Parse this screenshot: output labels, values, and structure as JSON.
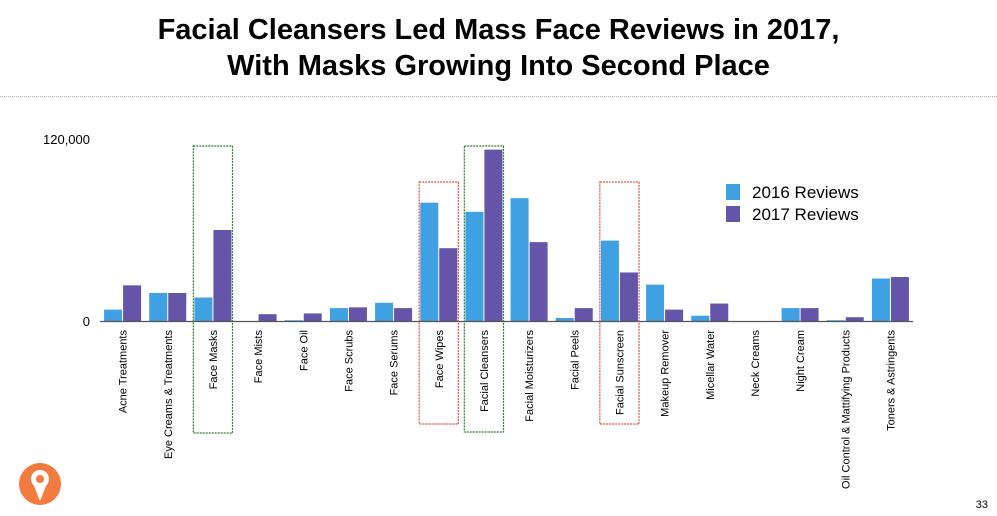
{
  "title_lines": [
    "Facial Cleansers Led Mass Face Reviews in 2017,",
    "With Masks Growing Into Second Place"
  ],
  "page_number": "33",
  "logo_icon": "orange-circle-person-icon",
  "chart_data": {
    "type": "bar",
    "title": "Facial Cleansers Led Mass Face Reviews in 2017, With Masks Growing Into Second Place",
    "xlabel": "",
    "ylabel": "",
    "ylim": [
      0,
      120000
    ],
    "y_ticks": [
      0,
      120000
    ],
    "y_tick_labels": [
      "0",
      "120,000"
    ],
    "grid": false,
    "legend_position": "top-right",
    "categories": [
      "Acne Treatments",
      "Eye Creams & Treatments",
      "Face Masks",
      "Face Mists",
      "Face Oil",
      "Face Scrubs",
      "Face Serums",
      "Face Wipes",
      "Facial Cleansers",
      "Facial Moisturizers",
      "Facial Peels",
      "Facial Sunscreen",
      "Makeup Remover",
      "Micellar Water",
      "Neck Creams",
      "Night Cream",
      "Oil Control & Mattifying Products",
      "Toners & Astringents"
    ],
    "series": [
      {
        "name": "2016 Reviews",
        "color": "#3fa0e2",
        "values": [
          7500,
          18500,
          15500,
          0,
          500,
          8500,
          12000,
          78000,
          72000,
          81000,
          2000,
          53000,
          24000,
          3500,
          0,
          8500,
          500,
          28000
        ]
      },
      {
        "name": "2017 Reviews",
        "color": "#6455a9",
        "values": [
          23500,
          18500,
          60000,
          4500,
          5000,
          9000,
          8500,
          48000,
          113000,
          52000,
          8500,
          32000,
          7500,
          11500,
          0,
          8500,
          2500,
          29000
        ]
      }
    ],
    "highlights": [
      {
        "category": "Face Masks",
        "color": "#2e7d32"
      },
      {
        "category": "Face Wipes",
        "color": "#d9534f"
      },
      {
        "category": "Facial Cleansers",
        "color": "#2e7d32"
      },
      {
        "category": "Facial Sunscreen",
        "color": "#d9534f"
      }
    ]
  }
}
